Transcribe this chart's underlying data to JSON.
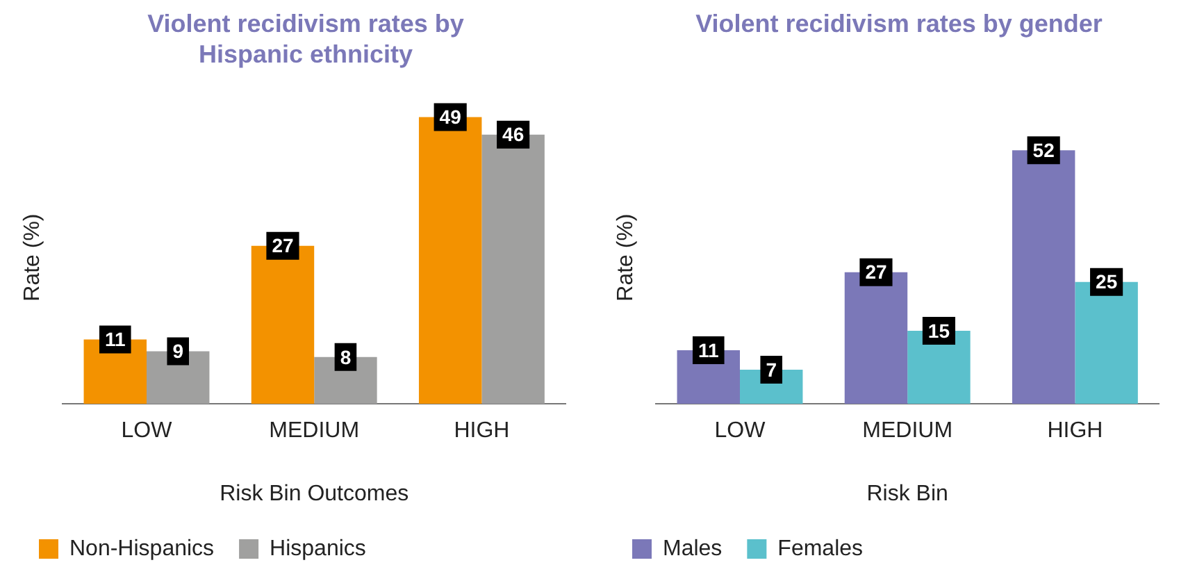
{
  "chart_data": [
    {
      "type": "bar",
      "title": "Violent recidivism rates by Hispanic ethnicity",
      "xlabel": "Risk Bin Outcomes",
      "ylabel": "Rate (%)",
      "categories": [
        "LOW",
        "MEDIUM",
        "HIGH"
      ],
      "series": [
        {
          "name": "Non-Hispanics",
          "color": "#f39200",
          "values": [
            11,
            27,
            49
          ]
        },
        {
          "name": "Hispanics",
          "color": "#a0a09f",
          "values": [
            9,
            8,
            46
          ]
        }
      ],
      "data_labels": true,
      "grid": false,
      "legend": "bottom",
      "tick_labels": "x"
    },
    {
      "type": "bar",
      "title": "Violent recidivism rates by gender",
      "xlabel": "Risk Bin",
      "ylabel": "Rate (%)",
      "categories": [
        "LOW",
        "MEDIUM",
        "HIGH"
      ],
      "series": [
        {
          "name": "Males",
          "color": "#7b78b8",
          "values": [
            11,
            27,
            52
          ]
        },
        {
          "name": "Females",
          "color": "#5bc0cc",
          "values": [
            7,
            15,
            25
          ]
        }
      ],
      "data_labels": true,
      "grid": false,
      "legend": "bottom",
      "tick_labels": "x"
    }
  ]
}
